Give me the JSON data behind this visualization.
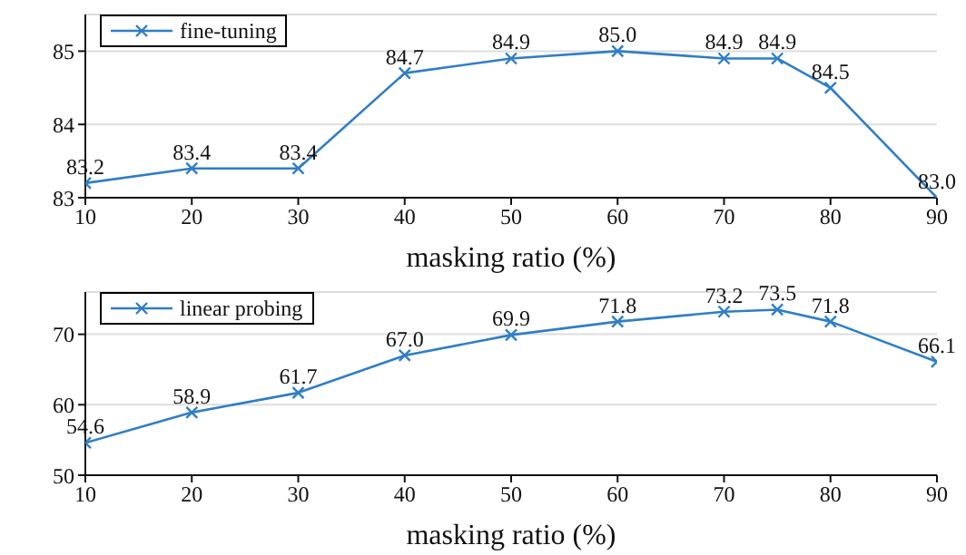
{
  "chart_data": [
    {
      "type": "line",
      "x": [
        10,
        20,
        30,
        40,
        50,
        60,
        70,
        75,
        80,
        90
      ],
      "series": [
        {
          "name": "fine-tuning",
          "color": "#2f7ec6",
          "values": [
            83.2,
            83.4,
            83.4,
            84.7,
            84.9,
            85.0,
            84.9,
            84.9,
            84.5,
            83.0
          ],
          "value_labels": [
            "83.2",
            "83.4",
            "83.4",
            "84.7",
            "84.9",
            "85.0",
            "84.9",
            "84.9",
            "84.5",
            "83.0"
          ]
        }
      ],
      "xlabel": "masking ratio (%)",
      "xlim": [
        10,
        90
      ],
      "xticks": [
        10,
        20,
        30,
        40,
        50,
        60,
        70,
        80,
        90
      ],
      "ylim": [
        83,
        85.5
      ],
      "yticks": [
        83,
        84,
        85
      ],
      "grid": "y",
      "legend": "top left",
      "marker": "cross",
      "line_style": "solid"
    },
    {
      "type": "line",
      "x": [
        10,
        20,
        30,
        40,
        50,
        60,
        70,
        75,
        80,
        90
      ],
      "series": [
        {
          "name": "linear probing",
          "color": "#2f7ec6",
          "values": [
            54.6,
            58.9,
            61.7,
            67.0,
            69.9,
            71.8,
            73.2,
            73.5,
            71.8,
            66.1
          ],
          "value_labels": [
            "54.6",
            "58.9",
            "61.7",
            "67.0",
            "69.9",
            "71.8",
            "73.2",
            "73.5",
            "71.8",
            "66.1"
          ]
        }
      ],
      "xlabel": "masking ratio (%)",
      "xlim": [
        10,
        90
      ],
      "xticks": [
        10,
        20,
        30,
        40,
        50,
        60,
        70,
        80,
        90
      ],
      "ylim": [
        50,
        76
      ],
      "yticks": [
        50,
        60,
        70
      ],
      "grid": "y",
      "legend": "top left",
      "marker": "cross",
      "line_style": "solid"
    }
  ]
}
